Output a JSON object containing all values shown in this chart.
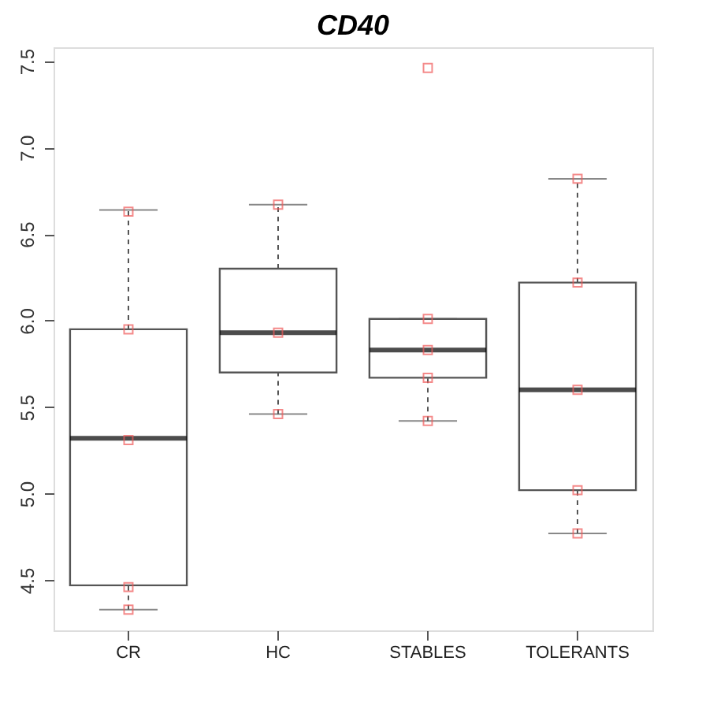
{
  "chart_data": {
    "type": "box",
    "title": "CD40",
    "categories": [
      "CR",
      "HC",
      "STABLES",
      "TOLERANTS"
    ],
    "boxes": [
      {
        "low": 4.33,
        "q1": 4.47,
        "median": 5.32,
        "q3": 5.95,
        "high": 6.64
      },
      {
        "low": 5.46,
        "q1": 5.7,
        "median": 5.93,
        "q3": 6.3,
        "high": 6.67
      },
      {
        "low": 5.42,
        "q1": 5.67,
        "median": 5.83,
        "q3": 6.01,
        "high": 6.01
      },
      {
        "low": 4.77,
        "q1": 5.02,
        "median": 5.6,
        "q3": 6.22,
        "high": 6.82
      }
    ],
    "series": [
      {
        "type": "scatter",
        "color": "#f05a5a",
        "marker": "square",
        "x": [
          "CR",
          "CR",
          "CR",
          "CR",
          "CR",
          "HC",
          "HC",
          "HC",
          "STABLES",
          "STABLES",
          "STABLES",
          "STABLES",
          "STABLES",
          "TOLERANTS",
          "TOLERANTS",
          "TOLERANTS",
          "TOLERANTS",
          "TOLERANTS"
        ],
        "values": [
          6.63,
          5.95,
          5.31,
          4.46,
          4.33,
          6.67,
          5.93,
          5.46,
          7.46,
          6.01,
          5.83,
          5.67,
          5.42,
          6.82,
          6.22,
          5.6,
          5.02,
          4.77
        ]
      }
    ],
    "ylim": [
      4.21,
      7.58
    ],
    "yticks": [
      4.5,
      {
        "value": 5,
        "label": "5.0"
      },
      5.5,
      {
        "value": 6,
        "label": "6.0"
      },
      6.5,
      {
        "value": 7,
        "label": "7.0"
      },
      7.5
    ],
    "grid": false
  }
}
